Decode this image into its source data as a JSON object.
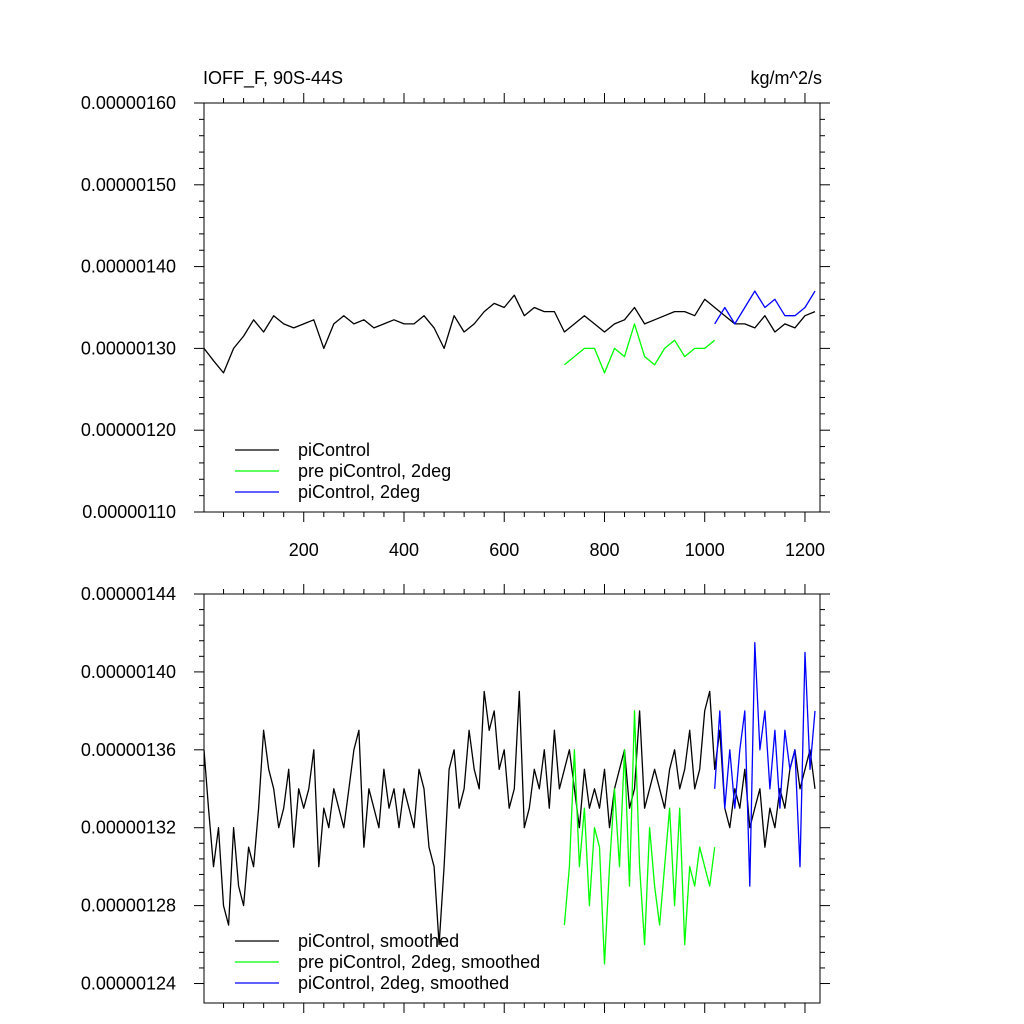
{
  "chart_data": [
    {
      "type": "line",
      "title": "IOFF_F, 90S-44S",
      "units": "kg/m^2/s",
      "xlim": [
        1,
        1230
      ],
      "ylim": [
        1.1e-06,
        1.6e-06
      ],
      "xticks": [
        200,
        400,
        600,
        800,
        1000,
        1200
      ],
      "xtick_labels": [
        "200",
        "400",
        "600",
        "800",
        "1000",
        "1200"
      ],
      "yticks": [
        1.1e-06,
        1.2e-06,
        1.3e-06,
        1.4e-06,
        1.5e-06,
        1.6e-06
      ],
      "ytick_labels": [
        "0.00000110",
        "0.00000120",
        "0.00000130",
        "0.00000140",
        "0.00000150",
        "0.00000160"
      ],
      "legend_position": "bottom-left",
      "series": [
        {
          "name": "piControl",
          "color": "#000000",
          "x": [
            1,
            20,
            40,
            60,
            80,
            100,
            120,
            140,
            160,
            180,
            200,
            220,
            240,
            260,
            280,
            300,
            320,
            340,
            360,
            380,
            400,
            420,
            440,
            460,
            480,
            500,
            520,
            540,
            560,
            580,
            600,
            620,
            640,
            660,
            680,
            700,
            720,
            740,
            760,
            780,
            800,
            820,
            840,
            860,
            880,
            900,
            920,
            940,
            960,
            980,
            1000,
            1020,
            1040,
            1060,
            1080,
            1100,
            1120,
            1140,
            1160,
            1180,
            1200,
            1220
          ],
          "y": [
            1.3e-06,
            1.285e-06,
            1.27e-06,
            1.3e-06,
            1.315e-06,
            1.335e-06,
            1.32e-06,
            1.34e-06,
            1.33e-06,
            1.325e-06,
            1.33e-06,
            1.335e-06,
            1.3e-06,
            1.33e-06,
            1.34e-06,
            1.33e-06,
            1.335e-06,
            1.325e-06,
            1.33e-06,
            1.335e-06,
            1.33e-06,
            1.33e-06,
            1.34e-06,
            1.325e-06,
            1.3e-06,
            1.34e-06,
            1.32e-06,
            1.33e-06,
            1.345e-06,
            1.355e-06,
            1.35e-06,
            1.365e-06,
            1.34e-06,
            1.35e-06,
            1.345e-06,
            1.345e-06,
            1.32e-06,
            1.33e-06,
            1.34e-06,
            1.33e-06,
            1.32e-06,
            1.33e-06,
            1.335e-06,
            1.35e-06,
            1.33e-06,
            1.335e-06,
            1.34e-06,
            1.345e-06,
            1.345e-06,
            1.34e-06,
            1.36e-06,
            1.35e-06,
            1.34e-06,
            1.33e-06,
            1.33e-06,
            1.325e-06,
            1.34e-06,
            1.32e-06,
            1.33e-06,
            1.325e-06,
            1.34e-06,
            1.345e-06
          ]
        },
        {
          "name": "pre piControl, 2deg",
          "color": "#00ff00",
          "x": [
            720,
            740,
            760,
            780,
            800,
            820,
            840,
            860,
            880,
            900,
            920,
            940,
            960,
            980,
            1000,
            1020
          ],
          "y": [
            1.28e-06,
            1.29e-06,
            1.3e-06,
            1.3e-06,
            1.27e-06,
            1.3e-06,
            1.29e-06,
            1.33e-06,
            1.29e-06,
            1.28e-06,
            1.3e-06,
            1.31e-06,
            1.29e-06,
            1.3e-06,
            1.3e-06,
            1.31e-06
          ]
        },
        {
          "name": "piControl, 2deg",
          "color": "#0000ff",
          "x": [
            1020,
            1040,
            1060,
            1080,
            1100,
            1120,
            1140,
            1160,
            1180,
            1200,
            1220
          ],
          "y": [
            1.33e-06,
            1.35e-06,
            1.33e-06,
            1.35e-06,
            1.37e-06,
            1.35e-06,
            1.36e-06,
            1.34e-06,
            1.34e-06,
            1.35e-06,
            1.37e-06
          ]
        }
      ]
    },
    {
      "type": "line",
      "xlim": [
        1,
        1230
      ],
      "ylim": [
        1.23e-06,
        1.44e-06
      ],
      "xticks": [
        200,
        400,
        600,
        800,
        1000,
        1200
      ],
      "yticks": [
        1.24e-06,
        1.28e-06,
        1.32e-06,
        1.36e-06,
        1.4e-06,
        1.44e-06
      ],
      "ytick_labels": [
        "0.00000124",
        "0.00000128",
        "0.00000132",
        "0.00000136",
        "0.00000140",
        "0.00000144"
      ],
      "legend_position": "bottom-left",
      "series": [
        {
          "name": "piControl, smoothed",
          "color": "#000000",
          "x": [
            1,
            10,
            20,
            30,
            40,
            50,
            60,
            70,
            80,
            90,
            100,
            110,
            120,
            130,
            140,
            150,
            160,
            170,
            180,
            190,
            200,
            210,
            220,
            230,
            240,
            250,
            260,
            270,
            280,
            290,
            300,
            310,
            320,
            330,
            340,
            350,
            360,
            370,
            380,
            390,
            400,
            410,
            420,
            430,
            440,
            450,
            460,
            470,
            480,
            490,
            500,
            510,
            520,
            530,
            540,
            550,
            560,
            570,
            580,
            590,
            600,
            610,
            620,
            630,
            640,
            650,
            660,
            670,
            680,
            690,
            700,
            710,
            720,
            730,
            740,
            750,
            760,
            770,
            780,
            790,
            800,
            810,
            820,
            830,
            840,
            850,
            860,
            870,
            880,
            890,
            900,
            910,
            920,
            930,
            940,
            950,
            960,
            970,
            980,
            990,
            1000,
            1010,
            1020,
            1030,
            1040,
            1050,
            1060,
            1070,
            1080,
            1090,
            1100,
            1110,
            1120,
            1130,
            1140,
            1150,
            1160,
            1170,
            1180,
            1190,
            1200,
            1210,
            1220
          ],
          "y": [
            1.36e-06,
            1.33e-06,
            1.3e-06,
            1.32e-06,
            1.28e-06,
            1.27e-06,
            1.32e-06,
            1.29e-06,
            1.28e-06,
            1.31e-06,
            1.3e-06,
            1.33e-06,
            1.37e-06,
            1.35e-06,
            1.34e-06,
            1.32e-06,
            1.33e-06,
            1.35e-06,
            1.31e-06,
            1.34e-06,
            1.33e-06,
            1.34e-06,
            1.36e-06,
            1.3e-06,
            1.33e-06,
            1.32e-06,
            1.34e-06,
            1.33e-06,
            1.32e-06,
            1.34e-06,
            1.36e-06,
            1.37e-06,
            1.31e-06,
            1.34e-06,
            1.33e-06,
            1.32e-06,
            1.35e-06,
            1.33e-06,
            1.34e-06,
            1.32e-06,
            1.34e-06,
            1.33e-06,
            1.32e-06,
            1.35e-06,
            1.34e-06,
            1.31e-06,
            1.3e-06,
            1.26e-06,
            1.3e-06,
            1.35e-06,
            1.36e-06,
            1.33e-06,
            1.34e-06,
            1.37e-06,
            1.35e-06,
            1.34e-06,
            1.39e-06,
            1.37e-06,
            1.38e-06,
            1.35e-06,
            1.36e-06,
            1.33e-06,
            1.34e-06,
            1.39e-06,
            1.32e-06,
            1.33e-06,
            1.35e-06,
            1.34e-06,
            1.36e-06,
            1.33e-06,
            1.37e-06,
            1.34e-06,
            1.35e-06,
            1.36e-06,
            1.34e-06,
            1.32e-06,
            1.35e-06,
            1.33e-06,
            1.34e-06,
            1.33e-06,
            1.35e-06,
            1.32e-06,
            1.34e-06,
            1.35e-06,
            1.36e-06,
            1.33e-06,
            1.34e-06,
            1.38e-06,
            1.33e-06,
            1.34e-06,
            1.35e-06,
            1.34e-06,
            1.33e-06,
            1.35e-06,
            1.36e-06,
            1.34e-06,
            1.35e-06,
            1.37e-06,
            1.34e-06,
            1.35e-06,
            1.38e-06,
            1.39e-06,
            1.35e-06,
            1.37e-06,
            1.33e-06,
            1.32e-06,
            1.34e-06,
            1.33e-06,
            1.35e-06,
            1.32e-06,
            1.33e-06,
            1.34e-06,
            1.31e-06,
            1.33e-06,
            1.32e-06,
            1.34e-06,
            1.33e-06,
            1.35e-06,
            1.36e-06,
            1.34e-06,
            1.35e-06,
            1.36e-06,
            1.34e-06
          ]
        },
        {
          "name": "pre piControl, 2deg, smoothed",
          "color": "#00ff00",
          "x": [
            720,
            730,
            740,
            750,
            760,
            770,
            780,
            790,
            800,
            810,
            820,
            830,
            840,
            850,
            860,
            870,
            880,
            890,
            900,
            910,
            920,
            930,
            940,
            950,
            960,
            970,
            980,
            990,
            1000,
            1010,
            1020
          ],
          "y": [
            1.27e-06,
            1.3e-06,
            1.36e-06,
            1.3e-06,
            1.33e-06,
            1.28e-06,
            1.32e-06,
            1.31e-06,
            1.25e-06,
            1.3e-06,
            1.34e-06,
            1.3e-06,
            1.36e-06,
            1.29e-06,
            1.38e-06,
            1.3e-06,
            1.26e-06,
            1.32e-06,
            1.29e-06,
            1.27e-06,
            1.3e-06,
            1.33e-06,
            1.28e-06,
            1.33e-06,
            1.26e-06,
            1.3e-06,
            1.29e-06,
            1.31e-06,
            1.3e-06,
            1.29e-06,
            1.31e-06
          ]
        },
        {
          "name": "piControl, 2deg, smoothed",
          "color": "#0000ff",
          "x": [
            1020,
            1030,
            1040,
            1050,
            1060,
            1070,
            1080,
            1090,
            1100,
            1110,
            1120,
            1130,
            1140,
            1150,
            1160,
            1170,
            1180,
            1190,
            1200,
            1210,
            1220
          ],
          "y": [
            1.34e-06,
            1.38e-06,
            1.33e-06,
            1.36e-06,
            1.33e-06,
            1.36e-06,
            1.38e-06,
            1.29e-06,
            1.415e-06,
            1.36e-06,
            1.38e-06,
            1.34e-06,
            1.37e-06,
            1.33e-06,
            1.37e-06,
            1.35e-06,
            1.36e-06,
            1.3e-06,
            1.41e-06,
            1.35e-06,
            1.38e-06
          ]
        }
      ]
    }
  ]
}
